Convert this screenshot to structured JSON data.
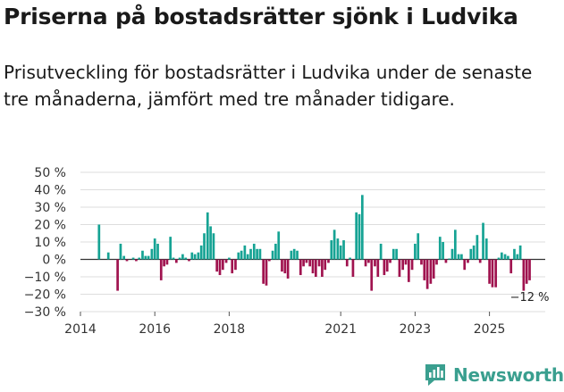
{
  "header": {
    "title": "Priserna på bostadsrätter sjönk i Ludvika",
    "subtitle": "Prisutveckling för bostadsrätter i Ludvika under de senaste tre månaderna, jämfört med tre månader tidigare."
  },
  "colors": {
    "positive": "#16a394",
    "negative": "#a0134f",
    "grid": "#dddddd",
    "brand": "#3a9f8f"
  },
  "chart_data": {
    "type": "bar",
    "ylim": [
      -30,
      50
    ],
    "yticks": [
      50,
      40,
      30,
      20,
      10,
      0,
      -10,
      -20,
      -30
    ],
    "ytick_labels": [
      "50 %",
      "40 %",
      "30 %",
      "20 %",
      "10 %",
      "0 %",
      "−10 %",
      "−20 %",
      "−30 %"
    ],
    "xlim": [
      2014,
      2026.5
    ],
    "xticks": [
      2014,
      2016,
      2018,
      2021,
      2023,
      2025
    ],
    "xtick_labels": [
      "2014",
      "2016",
      "2018",
      "2021",
      "2023",
      "2025"
    ],
    "last_value_label": "−12 %",
    "bars": [
      {
        "x": 2014.5,
        "value": 20
      },
      {
        "x": 2014.75,
        "value": 4
      },
      {
        "x": 2015.0,
        "value": -18
      },
      {
        "x": 2015.08,
        "value": 9
      },
      {
        "x": 2015.17,
        "value": 2
      },
      {
        "x": 2015.25,
        "value": -1
      },
      {
        "x": 2015.42,
        "value": 1
      },
      {
        "x": 2015.5,
        "value": -1
      },
      {
        "x": 2015.58,
        "value": 1
      },
      {
        "x": 2015.67,
        "value": 5
      },
      {
        "x": 2015.75,
        "value": 2
      },
      {
        "x": 2015.83,
        "value": 2
      },
      {
        "x": 2015.92,
        "value": 6
      },
      {
        "x": 2016.0,
        "value": 12
      },
      {
        "x": 2016.08,
        "value": 9
      },
      {
        "x": 2016.17,
        "value": -12
      },
      {
        "x": 2016.25,
        "value": -4
      },
      {
        "x": 2016.33,
        "value": -3
      },
      {
        "x": 2016.42,
        "value": 13
      },
      {
        "x": 2016.5,
        "value": 1
      },
      {
        "x": 2016.58,
        "value": -2
      },
      {
        "x": 2016.67,
        "value": 1
      },
      {
        "x": 2016.75,
        "value": 3
      },
      {
        "x": 2016.83,
        "value": 1
      },
      {
        "x": 2016.92,
        "value": -1
      },
      {
        "x": 2017.0,
        "value": 4
      },
      {
        "x": 2017.08,
        "value": 3
      },
      {
        "x": 2017.17,
        "value": 4
      },
      {
        "x": 2017.25,
        "value": 8
      },
      {
        "x": 2017.33,
        "value": 15
      },
      {
        "x": 2017.42,
        "value": 27
      },
      {
        "x": 2017.5,
        "value": 19
      },
      {
        "x": 2017.58,
        "value": 15
      },
      {
        "x": 2017.67,
        "value": -7
      },
      {
        "x": 2017.75,
        "value": -9
      },
      {
        "x": 2017.83,
        "value": -6
      },
      {
        "x": 2017.92,
        "value": -2
      },
      {
        "x": 2018.0,
        "value": 1
      },
      {
        "x": 2018.08,
        "value": -8
      },
      {
        "x": 2018.17,
        "value": -6
      },
      {
        "x": 2018.25,
        "value": 4
      },
      {
        "x": 2018.33,
        "value": 5
      },
      {
        "x": 2018.42,
        "value": 8
      },
      {
        "x": 2018.5,
        "value": 3
      },
      {
        "x": 2018.58,
        "value": 6
      },
      {
        "x": 2018.67,
        "value": 9
      },
      {
        "x": 2018.75,
        "value": 6
      },
      {
        "x": 2018.83,
        "value": 6
      },
      {
        "x": 2018.92,
        "value": -14
      },
      {
        "x": 2019.0,
        "value": -15
      },
      {
        "x": 2019.08,
        "value": -1
      },
      {
        "x": 2019.17,
        "value": 5
      },
      {
        "x": 2019.25,
        "value": 9
      },
      {
        "x": 2019.33,
        "value": 16
      },
      {
        "x": 2019.42,
        "value": -7
      },
      {
        "x": 2019.5,
        "value": -8
      },
      {
        "x": 2019.58,
        "value": -11
      },
      {
        "x": 2019.67,
        "value": 5
      },
      {
        "x": 2019.75,
        "value": 6
      },
      {
        "x": 2019.83,
        "value": 5
      },
      {
        "x": 2019.92,
        "value": -9
      },
      {
        "x": 2020.0,
        "value": -4
      },
      {
        "x": 2020.08,
        "value": -2
      },
      {
        "x": 2020.17,
        "value": -4
      },
      {
        "x": 2020.25,
        "value": -8
      },
      {
        "x": 2020.33,
        "value": -10
      },
      {
        "x": 2020.42,
        "value": -4
      },
      {
        "x": 2020.5,
        "value": -10
      },
      {
        "x": 2020.58,
        "value": -6
      },
      {
        "x": 2020.67,
        "value": -2
      },
      {
        "x": 2020.75,
        "value": 11
      },
      {
        "x": 2020.83,
        "value": 17
      },
      {
        "x": 2020.92,
        "value": 12
      },
      {
        "x": 2021.0,
        "value": 8
      },
      {
        "x": 2021.08,
        "value": 11
      },
      {
        "x": 2021.17,
        "value": -4
      },
      {
        "x": 2021.25,
        "value": 1
      },
      {
        "x": 2021.33,
        "value": -10
      },
      {
        "x": 2021.42,
        "value": 27
      },
      {
        "x": 2021.5,
        "value": 26
      },
      {
        "x": 2021.58,
        "value": 37
      },
      {
        "x": 2021.67,
        "value": -4
      },
      {
        "x": 2021.75,
        "value": -2
      },
      {
        "x": 2021.83,
        "value": -18
      },
      {
        "x": 2021.92,
        "value": -4
      },
      {
        "x": 2022.0,
        "value": -10
      },
      {
        "x": 2022.08,
        "value": 9
      },
      {
        "x": 2022.17,
        "value": -9
      },
      {
        "x": 2022.25,
        "value": -7
      },
      {
        "x": 2022.33,
        "value": -2
      },
      {
        "x": 2022.42,
        "value": 6
      },
      {
        "x": 2022.5,
        "value": 6
      },
      {
        "x": 2022.58,
        "value": -10
      },
      {
        "x": 2022.67,
        "value": -6
      },
      {
        "x": 2022.75,
        "value": -3
      },
      {
        "x": 2022.83,
        "value": -13
      },
      {
        "x": 2022.92,
        "value": -6
      },
      {
        "x": 2023.0,
        "value": 9
      },
      {
        "x": 2023.08,
        "value": 15
      },
      {
        "x": 2023.17,
        "value": -3
      },
      {
        "x": 2023.25,
        "value": -12
      },
      {
        "x": 2023.33,
        "value": -17
      },
      {
        "x": 2023.42,
        "value": -14
      },
      {
        "x": 2023.5,
        "value": -11
      },
      {
        "x": 2023.58,
        "value": -3
      },
      {
        "x": 2023.67,
        "value": 13
      },
      {
        "x": 2023.75,
        "value": 10
      },
      {
        "x": 2023.83,
        "value": -2
      },
      {
        "x": 2023.92,
        "value": 0.5
      },
      {
        "x": 2024.0,
        "value": 6
      },
      {
        "x": 2024.08,
        "value": 17
      },
      {
        "x": 2024.17,
        "value": 3
      },
      {
        "x": 2024.25,
        "value": 3
      },
      {
        "x": 2024.33,
        "value": -6
      },
      {
        "x": 2024.42,
        "value": -2
      },
      {
        "x": 2024.5,
        "value": 6
      },
      {
        "x": 2024.58,
        "value": 8
      },
      {
        "x": 2024.67,
        "value": 14
      },
      {
        "x": 2024.75,
        "value": -2
      },
      {
        "x": 2024.83,
        "value": 21
      },
      {
        "x": 2024.92,
        "value": 12
      },
      {
        "x": 2025.0,
        "value": -14
      },
      {
        "x": 2025.08,
        "value": -16
      },
      {
        "x": 2025.17,
        "value": -16
      },
      {
        "x": 2025.25,
        "value": 1
      },
      {
        "x": 2025.33,
        "value": 4
      },
      {
        "x": 2025.42,
        "value": 3
      },
      {
        "x": 2025.5,
        "value": 2
      },
      {
        "x": 2025.58,
        "value": -8
      },
      {
        "x": 2025.67,
        "value": 6
      },
      {
        "x": 2025.75,
        "value": 3
      },
      {
        "x": 2025.83,
        "value": 8
      },
      {
        "x": 2025.92,
        "value": -18
      },
      {
        "x": 2026.0,
        "value": -14
      },
      {
        "x": 2026.08,
        "value": -12
      }
    ]
  },
  "footer": {
    "brand_name": "Newsworthy"
  }
}
